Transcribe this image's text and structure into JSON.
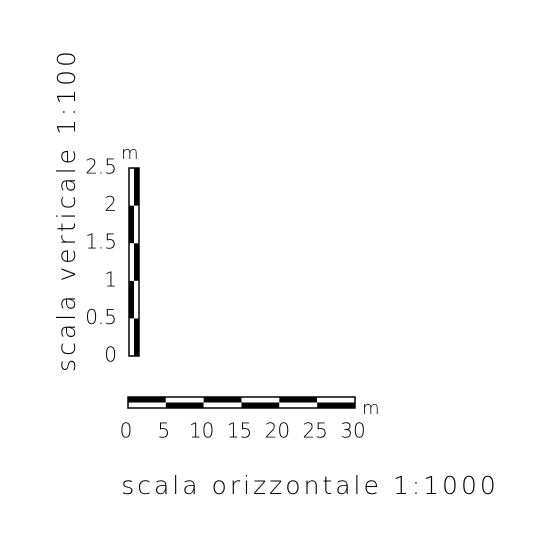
{
  "vertical_scale": {
    "title": "scala verticale 1:100",
    "unit": "m",
    "labels": [
      0,
      0.5,
      1,
      1.5,
      2,
      2.5
    ]
  },
  "horizontal_scale": {
    "title": "scala orizzontale 1:1000",
    "unit": "m",
    "labels": [
      0,
      5,
      10,
      15,
      20,
      25,
      30
    ]
  }
}
